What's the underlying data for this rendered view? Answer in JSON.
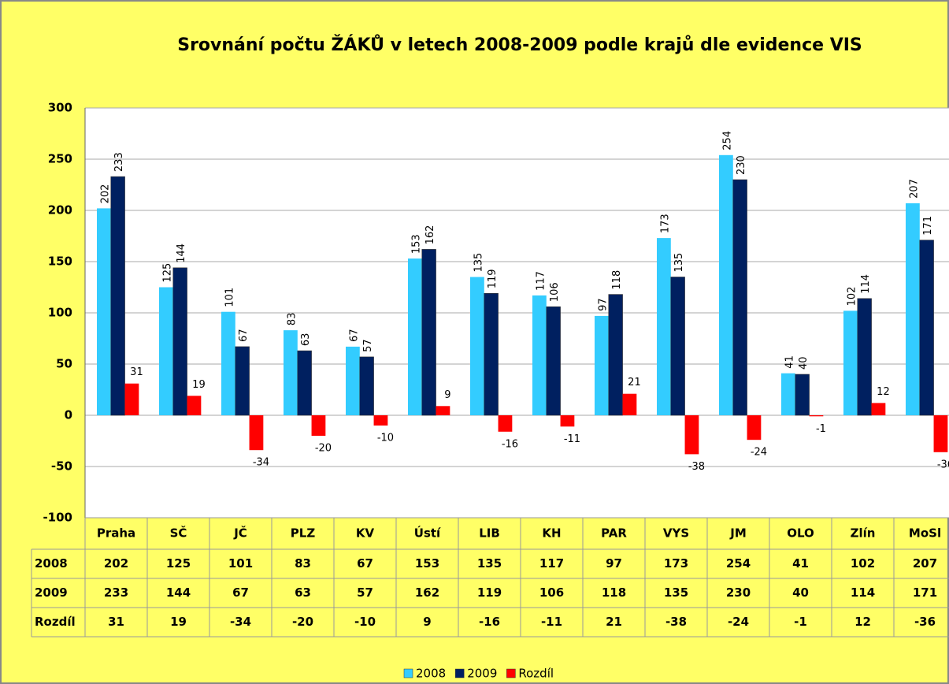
{
  "chart_data": {
    "type": "bar",
    "title": "Srovnání počtu ŽÁKŮ v letech 2008-2009 podle krajů dle evidence VIS",
    "categories": [
      "Praha",
      "SČ",
      "JČ",
      "PLZ",
      "KV",
      "Ústí",
      "LIB",
      "KH",
      "PAR",
      "VYS",
      "JM",
      "OLO",
      "Zlín",
      "MoSl"
    ],
    "series": [
      {
        "name": "2008",
        "color": "#33ccff",
        "values": [
          202,
          125,
          101,
          83,
          67,
          153,
          135,
          117,
          97,
          173,
          254,
          41,
          102,
          207
        ]
      },
      {
        "name": "2009",
        "color": "#002060",
        "values": [
          233,
          144,
          67,
          63,
          57,
          162,
          119,
          106,
          118,
          135,
          230,
          40,
          114,
          171
        ]
      },
      {
        "name": "Rozdíl",
        "color": "#ff0000",
        "values": [
          31,
          19,
          -34,
          -20,
          -10,
          9,
          -16,
          -11,
          21,
          -38,
          -24,
          -1,
          12,
          -36
        ]
      }
    ],
    "ylim": [
      -100,
      300
    ],
    "yticks": [
      -100,
      -50,
      0,
      50,
      100,
      150,
      200,
      250,
      300
    ],
    "grid": true,
    "legend": "bottom"
  }
}
